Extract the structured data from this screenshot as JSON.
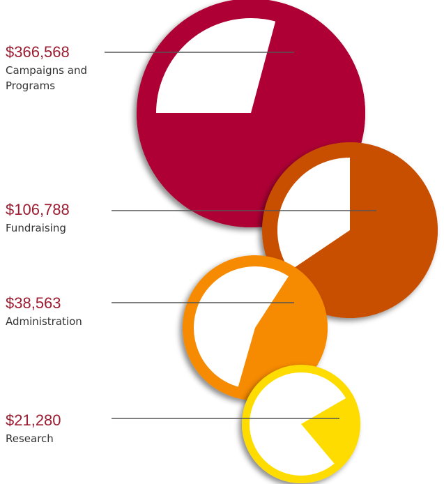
{
  "items": [
    {
      "amount": "$366,568",
      "label": "Campaigns and Programs"
    },
    {
      "amount": "$106,788",
      "label": "Fundraising"
    },
    {
      "amount": "$38,563",
      "label": "Administration"
    },
    {
      "amount": "$21,280",
      "label": "Research"
    }
  ]
}
